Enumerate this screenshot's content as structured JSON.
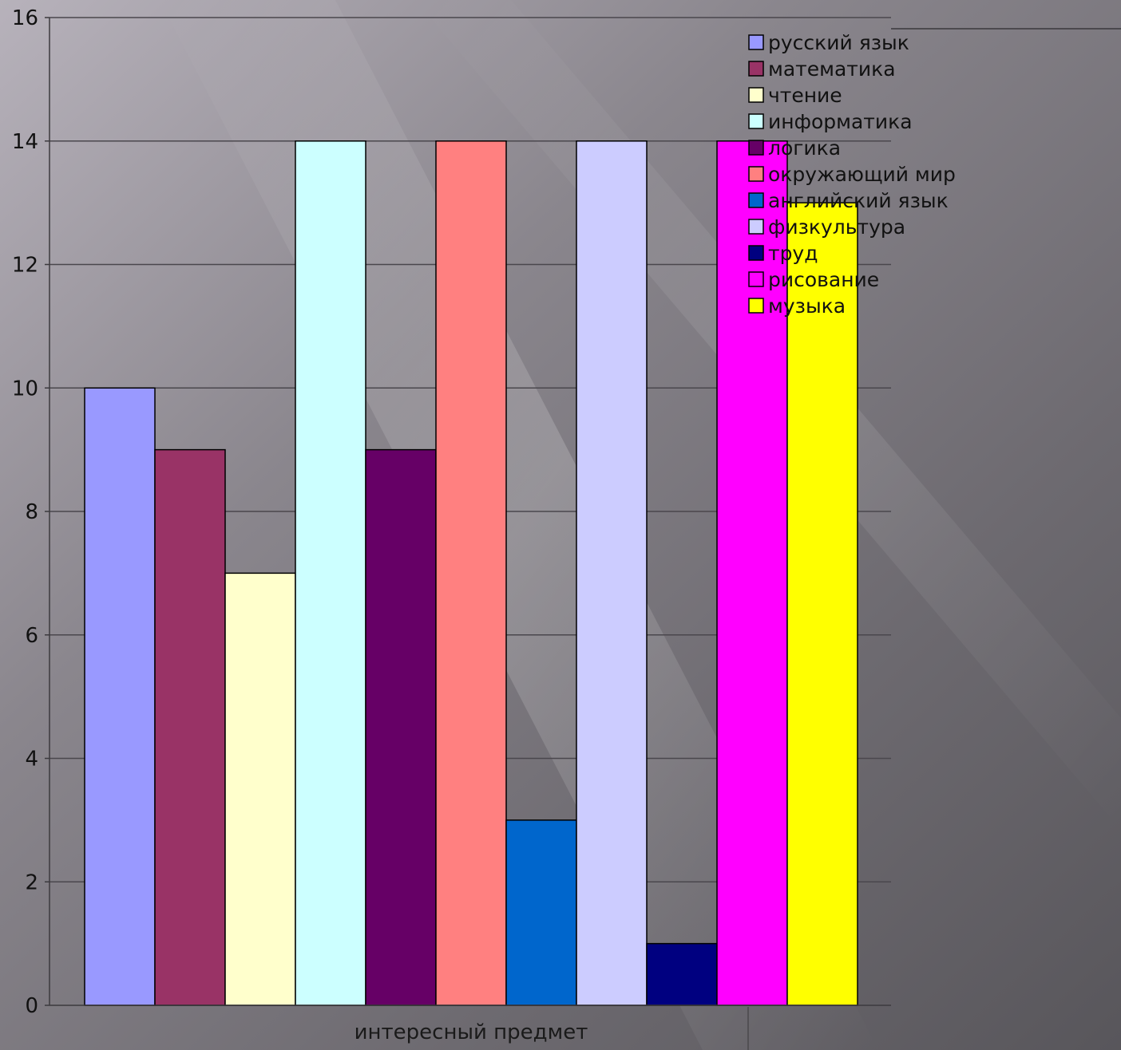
{
  "chart_data": {
    "type": "bar",
    "categories": [
      "интересный предмет"
    ],
    "series": [
      {
        "name": "русский язык",
        "values": [
          10
        ],
        "color": "#9999ff"
      },
      {
        "name": "математика",
        "values": [
          9
        ],
        "color": "#993366"
      },
      {
        "name": "чтение",
        "values": [
          7
        ],
        "color": "#ffffcc"
      },
      {
        "name": "информатика",
        "values": [
          14
        ],
        "color": "#ccffff"
      },
      {
        "name": "логика",
        "values": [
          9
        ],
        "color": "#660066"
      },
      {
        "name": "окружающий мир",
        "values": [
          14
        ],
        "color": "#ff8080"
      },
      {
        "name": "английский язык",
        "values": [
          3
        ],
        "color": "#0066cc"
      },
      {
        "name": "физкультура",
        "values": [
          14
        ],
        "color": "#ccccff"
      },
      {
        "name": "труд",
        "values": [
          1
        ],
        "color": "#000080"
      },
      {
        "name": "рисование",
        "values": [
          14
        ],
        "color": "#ff00ff"
      },
      {
        "name": "музыка",
        "values": [
          13
        ],
        "color": "#ffff00"
      }
    ],
    "ylim": [
      0,
      16
    ],
    "yticks": [
      0,
      2,
      4,
      6,
      8,
      10,
      12,
      14,
      16
    ],
    "grid": true,
    "legend_position": "top-right",
    "title": "",
    "xlabel": "",
    "ylabel": ""
  }
}
